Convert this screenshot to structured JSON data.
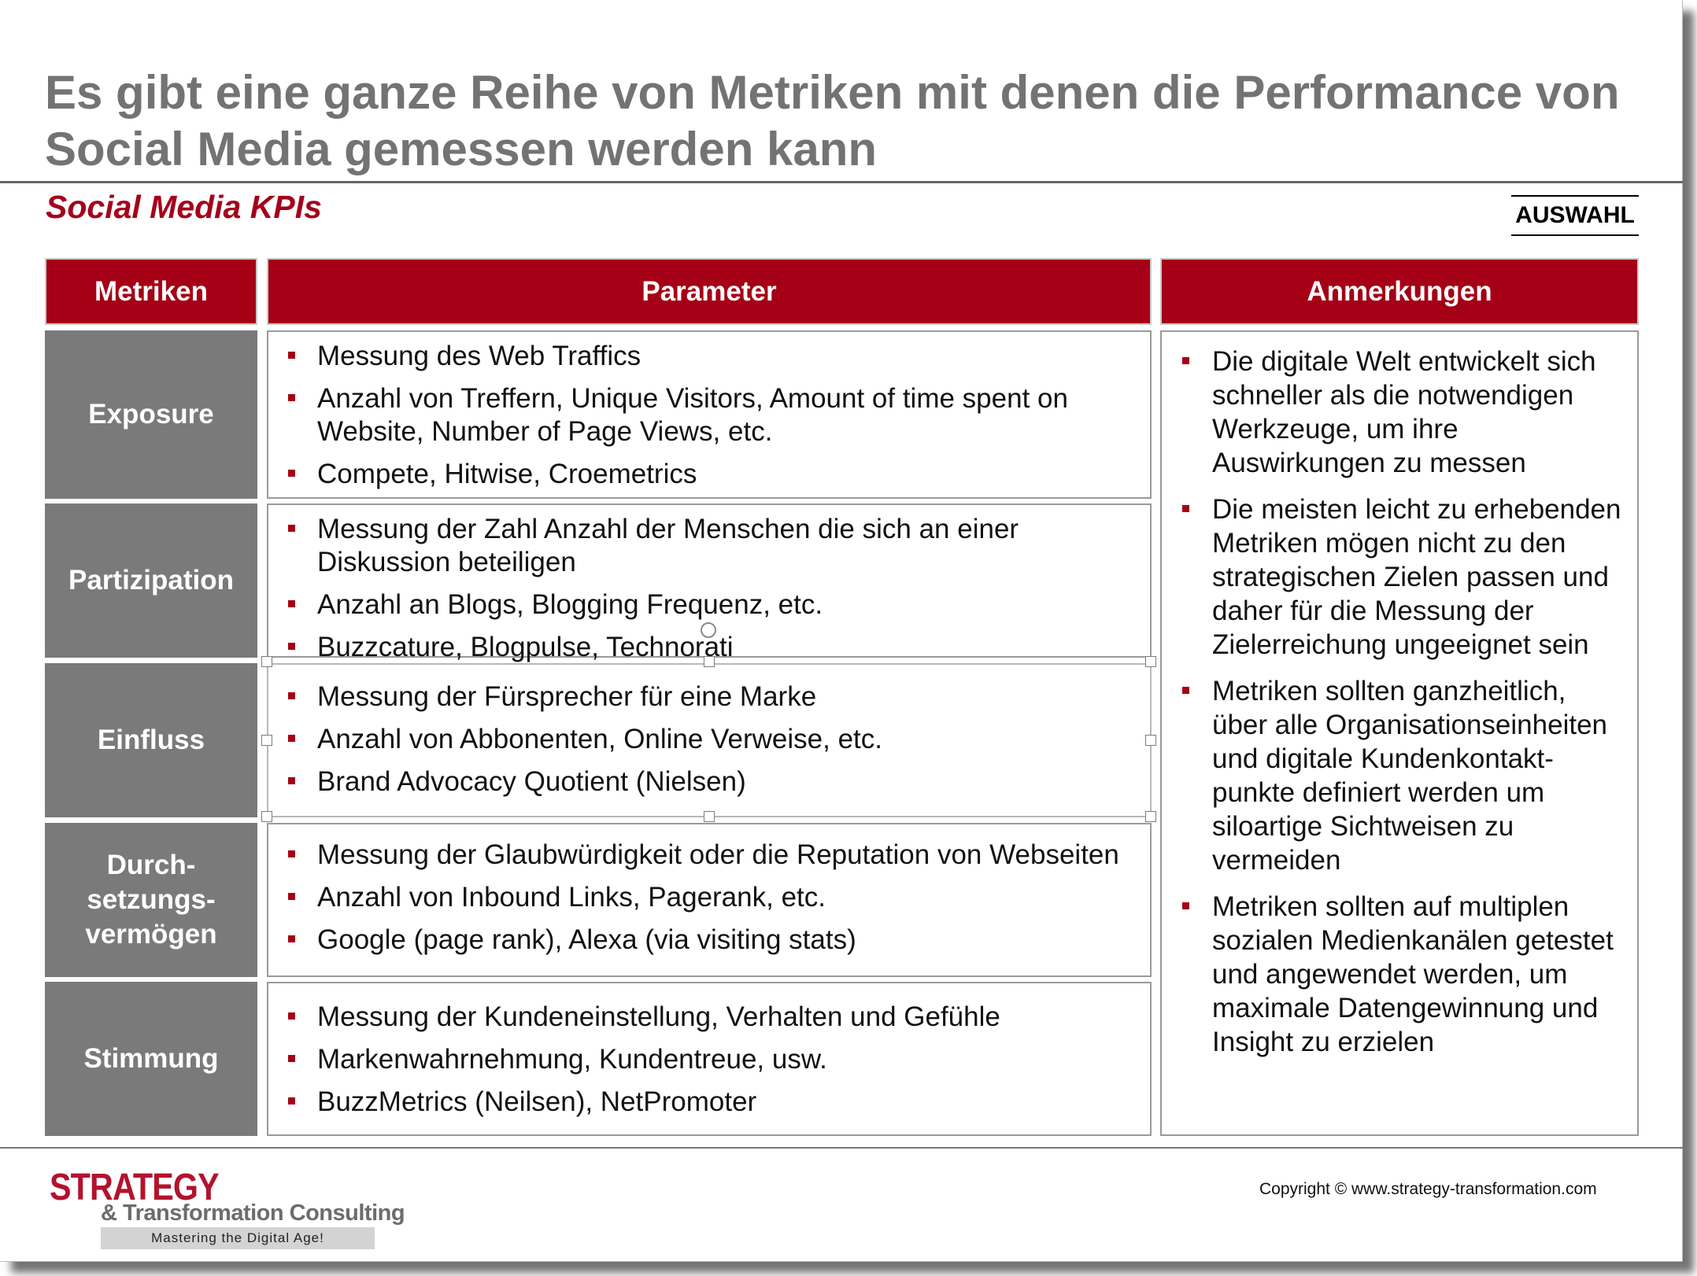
{
  "title": "Es gibt eine ganze Reihe von Metriken mit denen die Performance von Social Media gemessen werden kann",
  "subtitle": "Social Media KPIs",
  "badge": "AUSWAHL",
  "headers": {
    "metrics": "Metriken",
    "parameters": "Parameter",
    "notes": "Anmerkungen"
  },
  "rows": [
    {
      "metric": "Exposure",
      "params": [
        "Messung des Web Traffics",
        "Anzahl von Treffern, Unique Visitors, Amount of time spent on Website, Number of Page Views, etc.",
        "Compete, Hitwise, Croemetrics"
      ]
    },
    {
      "metric": "Partizipation",
      "params": [
        "Messung der Zahl Anzahl der Menschen die sich an einer Diskussion beteiligen",
        "Anzahl an Blogs, Blogging Frequenz, etc.",
        "Buzzcature, Blogpulse, Technorati"
      ]
    },
    {
      "metric": "Einfluss",
      "params": [
        "Messung der Fürsprecher für eine Marke",
        "Anzahl von Abbonenten, Online Verweise, etc.",
        "Brand Advocacy Quotient (Nielsen)"
      ]
    },
    {
      "metric": "Durch-\nsetzungs-\nvermögen",
      "params": [
        "Messung der Glaubwürdigkeit oder die Reputation von Webseiten",
        "Anzahl von Inbound Links, Pagerank, etc.",
        "Google (page rank), Alexa (via visiting stats)"
      ]
    },
    {
      "metric": "Stimmung",
      "params": [
        "Messung der Kundeneinstellung, Verhalten und Gefühle",
        "Markenwahrnehmung, Kundentreue, usw.",
        "BuzzMetrics (Neilsen), NetPromoter"
      ]
    }
  ],
  "notes": [
    "Die digitale Welt entwickelt sich schneller als die notwendigen Werkzeuge, um ihre Auswirkungen zu messen",
    "Die meisten leicht zu erhebenden Metriken mögen nicht zu den strategischen Zielen passen und daher für die Messung der Zielerreichung ungeeignet sein",
    "Metriken sollten ganzheitlich, über alle Organisationseinheiten und digitale Kundenkontakt-punkte definiert werden um siloartige Sichtweisen zu vermeiden",
    "Metriken sollten auf multiplen sozialen Medienkanälen getestet und angewendet werden, um maximale Datengewinnung und Insight zu erzielen"
  ],
  "footer": {
    "logo_main": "STRATEGY",
    "logo_sub": "& Transformation Consulting",
    "logo_tagline": "Mastering the Digital Age!",
    "copyright": "Copyright © www.strategy-transformation.com"
  },
  "colors": {
    "accent": "#a50015",
    "metric_bg": "#7a7a7a",
    "title": "#737373"
  }
}
